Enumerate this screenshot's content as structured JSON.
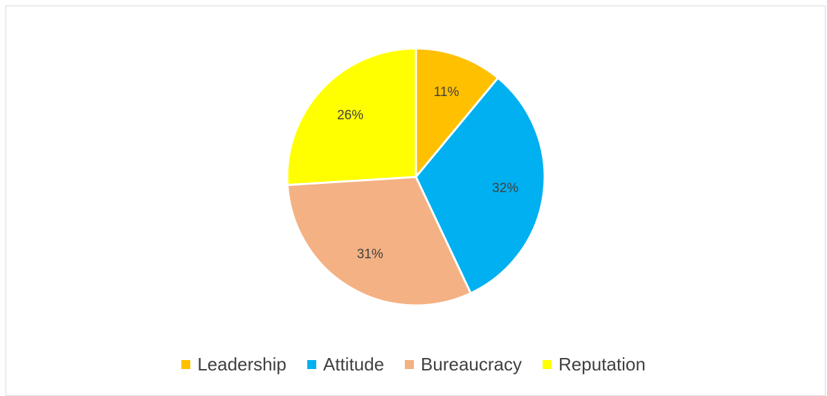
{
  "chart_data": {
    "type": "pie",
    "title": "",
    "slices": [
      {
        "label": "Leadership",
        "value": 11,
        "display": "11%",
        "color": "#ffc000"
      },
      {
        "label": "Attitude",
        "value": 32,
        "display": "32%",
        "color": "#00b0f0"
      },
      {
        "label": "Bureaucracy",
        "value": 31,
        "display": "31%",
        "color": "#f4b183"
      },
      {
        "label": "Reputation",
        "value": 26,
        "display": "26%",
        "color": "#ffff00"
      }
    ],
    "start": "12 o'clock",
    "direction": "clockwise",
    "legend_position": "bottom",
    "slice_border_color": "#ffffff"
  }
}
